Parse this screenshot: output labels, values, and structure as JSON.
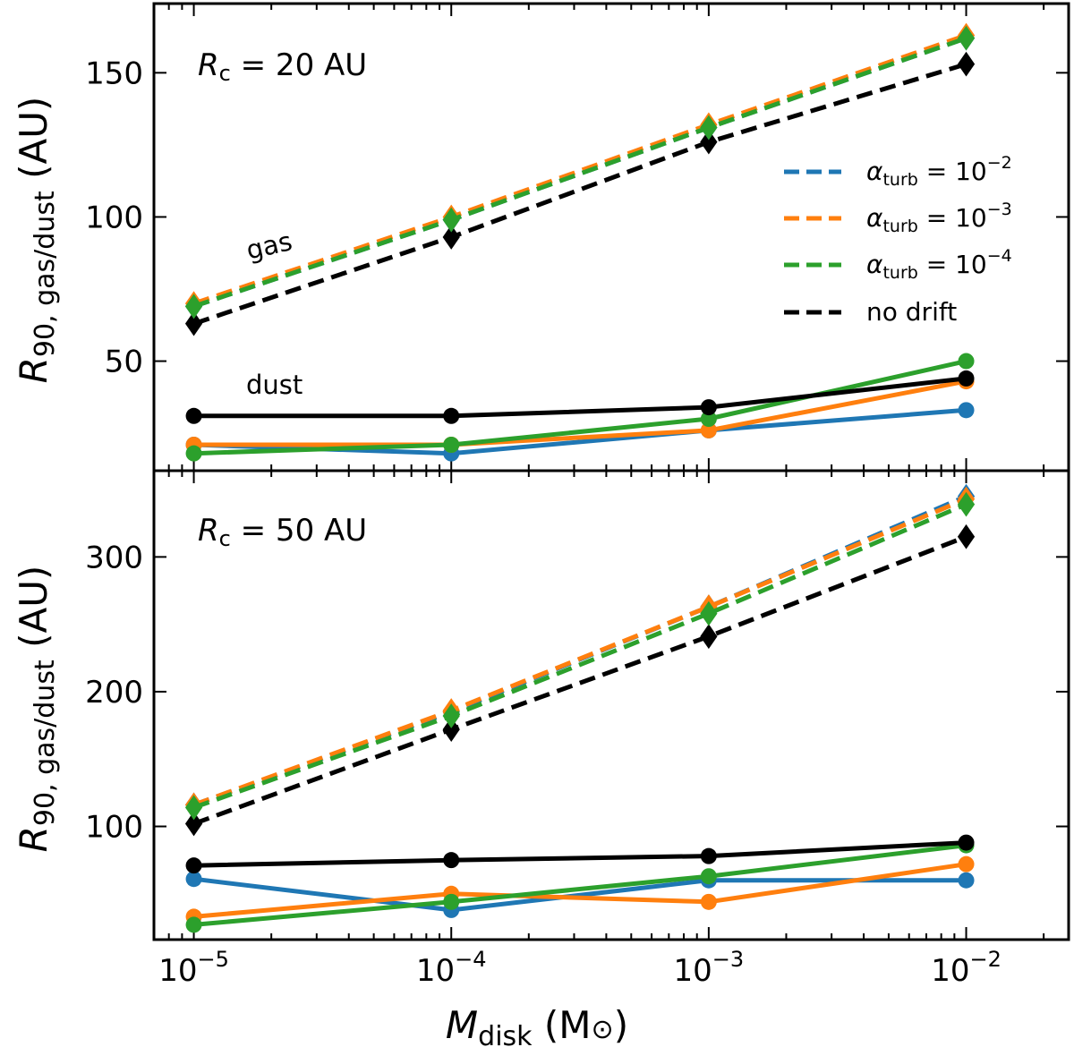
{
  "colors": {
    "blue": "#1f77b4",
    "orange": "#ff7f0e",
    "green": "#2ca02c",
    "black": "#000000"
  },
  "axis_titles": {
    "x_main": "M",
    "x_sub": "disk",
    "x_unit": "(M",
    "x_unit_symbol": "⊙",
    "x_close": ")",
    "y_main": "R",
    "y_sub": "90, gas/dust",
    "y_unit": "(AU)"
  },
  "x_ticks": [
    {
      "value": 1e-05,
      "base": "10",
      "exp": "−5"
    },
    {
      "value": 0.0001,
      "base": "10",
      "exp": "−4"
    },
    {
      "value": 0.001,
      "base": "10",
      "exp": "−3"
    },
    {
      "value": 0.01,
      "base": "10",
      "exp": "−2"
    }
  ],
  "legend": [
    {
      "key": "blue",
      "symbol": "α",
      "sub": "turb",
      "eq": " = 10",
      "exp": "−2"
    },
    {
      "key": "orange",
      "symbol": "α",
      "sub": "turb",
      "eq": " = 10",
      "exp": "−3"
    },
    {
      "key": "green",
      "symbol": "α",
      "sub": "turb",
      "eq": " = 10",
      "exp": "−4"
    },
    {
      "key": "black",
      "text": "no drift"
    }
  ],
  "chart_data": [
    {
      "type": "line",
      "panel": "top",
      "label_main": "R",
      "label_sub": "c",
      "label_rest": " = 20 AU",
      "annotations": {
        "gas": "gas",
        "dust": "dust"
      },
      "x": [
        1e-05,
        0.0001,
        0.001,
        0.01
      ],
      "xscale": "log",
      "xlim": [
        7e-06,
        0.025
      ],
      "ylim": [
        12,
        174
      ],
      "yticks": [
        50,
        100,
        150
      ],
      "series": [
        {
          "name": "gas α=1e-2",
          "key": "blue",
          "kind": "gas",
          "values": [
            69,
            99,
            131,
            162
          ]
        },
        {
          "name": "gas α=1e-3",
          "key": "orange",
          "kind": "gas",
          "values": [
            70,
            100,
            132,
            163
          ]
        },
        {
          "name": "gas α=1e-4",
          "key": "green",
          "kind": "gas",
          "values": [
            69,
            99,
            131,
            162
          ]
        },
        {
          "name": "gas no drift",
          "key": "black",
          "kind": "gas",
          "values": [
            63,
            93,
            126,
            153
          ]
        },
        {
          "name": "dust α=1e-2",
          "key": "blue",
          "kind": "dust",
          "values": [
            21,
            18,
            26,
            33
          ]
        },
        {
          "name": "dust α=1e-3",
          "key": "orange",
          "kind": "dust",
          "values": [
            21,
            21,
            26,
            43
          ]
        },
        {
          "name": "dust α=1e-4",
          "key": "green",
          "kind": "dust",
          "values": [
            18,
            21,
            30,
            50
          ]
        },
        {
          "name": "dust no drift",
          "key": "black",
          "kind": "dust",
          "values": [
            31,
            31,
            34,
            44
          ]
        }
      ]
    },
    {
      "type": "line",
      "panel": "bottom",
      "label_main": "R",
      "label_sub": "c",
      "label_rest": " = 50 AU",
      "x": [
        1e-05,
        0.0001,
        0.001,
        0.01
      ],
      "xscale": "log",
      "xlim": [
        7e-06,
        0.025
      ],
      "ylim": [
        16,
        364
      ],
      "yticks": [
        100,
        200,
        300
      ],
      "series": [
        {
          "name": "gas α=1e-2",
          "key": "blue",
          "kind": "gas",
          "values": [
            116,
            185,
            263,
            345
          ]
        },
        {
          "name": "gas α=1e-3",
          "key": "orange",
          "kind": "gas",
          "values": [
            116,
            186,
            263,
            343
          ]
        },
        {
          "name": "gas α=1e-4",
          "key": "green",
          "kind": "gas",
          "values": [
            114,
            182,
            258,
            339
          ]
        },
        {
          "name": "gas no drift",
          "key": "black",
          "kind": "gas",
          "values": [
            102,
            172,
            241,
            315
          ]
        },
        {
          "name": "dust α=1e-2",
          "key": "blue",
          "kind": "dust",
          "values": [
            61,
            38,
            60,
            60
          ]
        },
        {
          "name": "dust α=1e-3",
          "key": "orange",
          "kind": "dust",
          "values": [
            33,
            50,
            44,
            72
          ]
        },
        {
          "name": "dust α=1e-4",
          "key": "green",
          "kind": "dust",
          "values": [
            27,
            44,
            63,
            86
          ]
        },
        {
          "name": "dust no drift",
          "key": "black",
          "kind": "dust",
          "values": [
            71,
            75,
            78,
            88
          ]
        }
      ]
    }
  ]
}
